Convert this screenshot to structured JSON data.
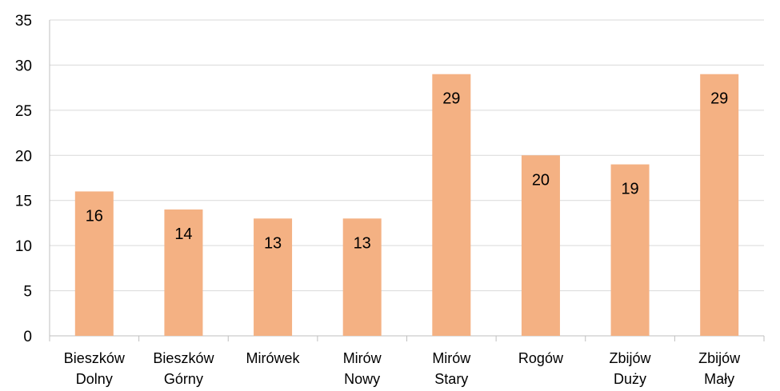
{
  "chart_data": {
    "type": "bar",
    "title": "",
    "xlabel": "",
    "ylabel": "",
    "categories": [
      [
        "Bieszków",
        "Dolny"
      ],
      [
        "Bieszków",
        "Górny"
      ],
      [
        "Mirówek"
      ],
      [
        "Mirów",
        "Nowy"
      ],
      [
        "Mirów",
        "Stary"
      ],
      [
        "Rogów"
      ],
      [
        "Zbijów",
        "Duży"
      ],
      [
        "Zbijów",
        "Mały"
      ]
    ],
    "values": [
      16,
      14,
      13,
      13,
      29,
      20,
      19,
      29
    ],
    "data_labels": [
      "16",
      "14",
      "13",
      "13",
      "29",
      "20",
      "19",
      "29"
    ],
    "ylim": [
      0,
      35
    ],
    "y_ticks": [
      0,
      5,
      10,
      15,
      20,
      25,
      30,
      35
    ],
    "grid": true,
    "legend": "none",
    "colors": {
      "bar": "#F4B183",
      "grid": "#D9D9D9",
      "axis": "#BFBFBF",
      "text": "#000000"
    }
  }
}
